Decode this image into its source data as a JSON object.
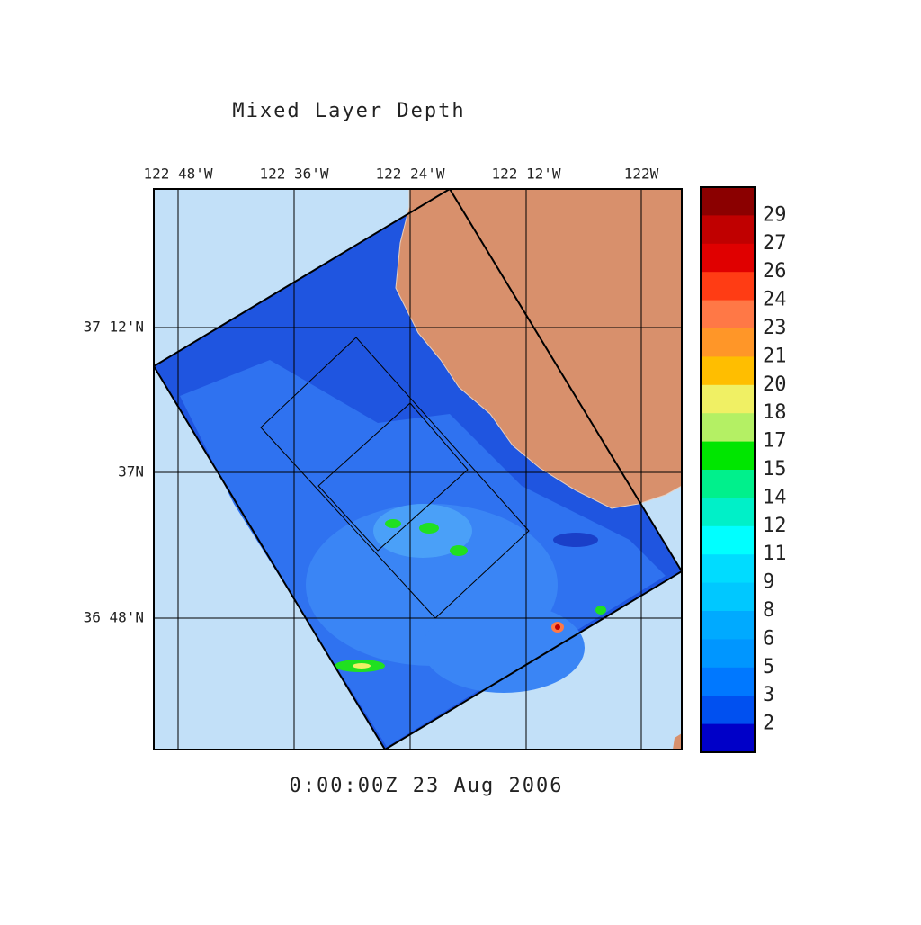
{
  "title": "Mixed Layer Depth",
  "lon_labels": [
    "122 48'W",
    "122 36'W",
    "122 24'W",
    "122 12'W",
    "122W"
  ],
  "lat_labels": [
    "37 12'N",
    "37N",
    "36 48'N"
  ],
  "colorbar": {
    "labels": [
      29,
      27,
      26,
      24,
      23,
      21,
      20,
      18,
      17,
      15,
      14,
      12,
      11,
      9,
      8,
      6,
      5,
      3,
      2
    ]
  },
  "timestamp": "0:00:00Z  23 Aug 2006"
}
